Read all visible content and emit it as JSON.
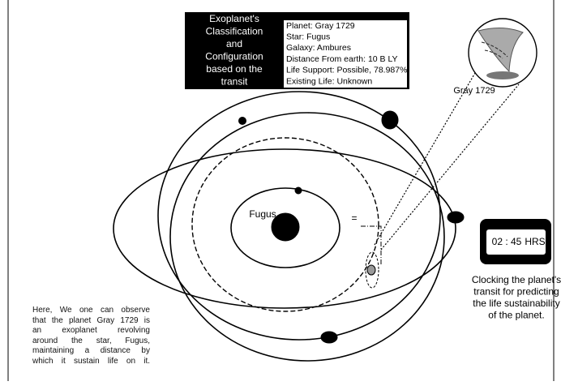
{
  "header": {
    "title_lines": [
      "Exoplanet's",
      "Classification",
      "and",
      "Configuration",
      "based on the",
      "transit"
    ],
    "info": [
      "Planet: Gray 1729",
      "Star: Fugus",
      "Galaxy: Ambures",
      "Distance From earth: 10 B LY",
      "Life Support: Possible, 78.987%",
      "Existing Life: Unknown"
    ]
  },
  "labels": {
    "star": "Fugus",
    "planet": "Gray 1729",
    "equals": "="
  },
  "clock": {
    "time": "02 : 45",
    "unit": "HRS"
  },
  "caption_right": [
    "Clocking the planet's",
    "transit for predicting",
    "the life sustainability",
    "of the planet."
  ],
  "caption_left": [
    "Here, We one can observe",
    "that the planet Gray 1729 is",
    "an exoplanet revolving",
    "around the star, Fugus,",
    "maintaining a distance by",
    "which it sustain life on it."
  ]
}
